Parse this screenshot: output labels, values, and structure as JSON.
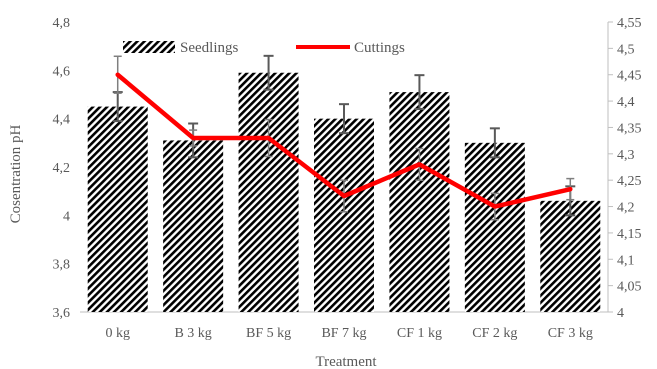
{
  "chart_data": {
    "type": "bar",
    "categories": [
      "0 kg",
      "B 3 kg",
      "BF 5 kg",
      "BF 7 kg",
      "CF 1 kg",
      "CF 2 kg",
      "CF 3 kg"
    ],
    "xlabel": "Treatment",
    "ylabel": "Cosentration pH",
    "y_left": {
      "range": [
        3.6,
        4.8
      ],
      "step": 0.2,
      "tick_labels": [
        "3,6",
        "3,8",
        "4",
        "4,2",
        "4,4",
        "4,6",
        "4,8"
      ]
    },
    "y_right": {
      "range": [
        4.0,
        4.55
      ],
      "step": 0.05,
      "tick_labels": [
        "4",
        "4,05",
        "4,1",
        "4,15",
        "4,2",
        "4,25",
        "4,3",
        "4,35",
        "4,4",
        "4,45",
        "4,5",
        "4,55"
      ]
    },
    "series": [
      {
        "name": "Seedlings",
        "type": "bar",
        "axis": "left",
        "values": [
          4.45,
          4.31,
          4.59,
          4.4,
          4.51,
          4.3,
          4.06
        ],
        "error": [
          0.06,
          0.07,
          0.07,
          0.06,
          0.07,
          0.06,
          0.06
        ],
        "pattern": "diagonal-stripes",
        "color": "#000000"
      },
      {
        "name": "Cuttings",
        "type": "line",
        "axis": "right",
        "values": [
          4.45,
          4.33,
          4.33,
          4.22,
          4.28,
          4.2,
          4.233
        ],
        "error": [
          0.035,
          0.015,
          0.035,
          0.03,
          0.03,
          0.025,
          0.02
        ],
        "color": "#ff0000"
      }
    ],
    "legend": {
      "position": "top"
    },
    "grid": false
  }
}
